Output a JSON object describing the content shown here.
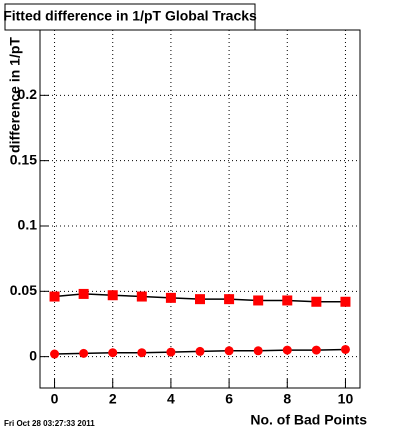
{
  "chart_data": {
    "type": "scatter",
    "title": "Fitted difference in 1/pT  Global Tracks",
    "y_label": "difference in 1/pT",
    "x_label": "No. of Bad Points",
    "footer": "Fri Oct 28 03:27:33 2011",
    "x": [
      0,
      1,
      2,
      3,
      4,
      5,
      6,
      7,
      8,
      9,
      10
    ],
    "series": [
      {
        "marker": "square",
        "color": "#ff0000",
        "values": [
          0.046,
          0.048,
          0.047,
          0.046,
          0.045,
          0.044,
          0.044,
          0.043,
          0.043,
          0.042,
          0.042
        ]
      },
      {
        "marker": "circle",
        "color": "#ff0000",
        "values": [
          0.002,
          0.0025,
          0.003,
          0.003,
          0.0035,
          0.004,
          0.0045,
          0.0045,
          0.005,
          0.005,
          0.0055
        ]
      }
    ],
    "xlim": [
      -0.5,
      10.5
    ],
    "ylim": [
      -0.024,
      0.25
    ],
    "xticks": [
      0,
      2,
      4,
      6,
      8,
      10
    ],
    "yticks": [
      0,
      0.05,
      0.1,
      0.15,
      0.2
    ],
    "grid": true
  }
}
